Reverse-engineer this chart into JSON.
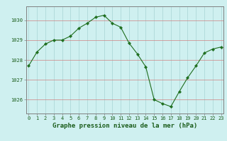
{
  "x": [
    0,
    1,
    2,
    3,
    4,
    5,
    6,
    7,
    8,
    9,
    10,
    11,
    12,
    13,
    14,
    15,
    16,
    17,
    18,
    19,
    20,
    21,
    22,
    23
  ],
  "y": [
    1027.7,
    1028.4,
    1028.8,
    1029.0,
    1029.0,
    1029.2,
    1029.6,
    1029.85,
    1030.15,
    1030.25,
    1029.85,
    1029.65,
    1028.85,
    1028.3,
    1027.65,
    1026.0,
    1025.8,
    1025.65,
    1026.4,
    1027.1,
    1027.7,
    1028.35,
    1028.55,
    1028.65
  ],
  "line_color": "#1e6e1e",
  "marker": "D",
  "marker_size": 2.2,
  "bg_color": "#cff0f0",
  "hgrid_color": "#d08080",
  "vgrid_color": "#a8d4d4",
  "xlabel": "Graphe pression niveau de la mer (hPa)",
  "xlabel_color": "#1a5c1a",
  "tick_color": "#1a5c1a",
  "ylim": [
    1025.3,
    1030.7
  ],
  "yticks": [
    1026,
    1027,
    1028,
    1029,
    1030
  ],
  "xticks": [
    0,
    1,
    2,
    3,
    4,
    5,
    6,
    7,
    8,
    9,
    10,
    11,
    12,
    13,
    14,
    15,
    16,
    17,
    18,
    19,
    20,
    21,
    22,
    23
  ],
  "xlim": [
    -0.3,
    23.3
  ],
  "spine_color": "#808080",
  "xlabel_fontsize": 6.5,
  "tick_fontsize": 5.0
}
